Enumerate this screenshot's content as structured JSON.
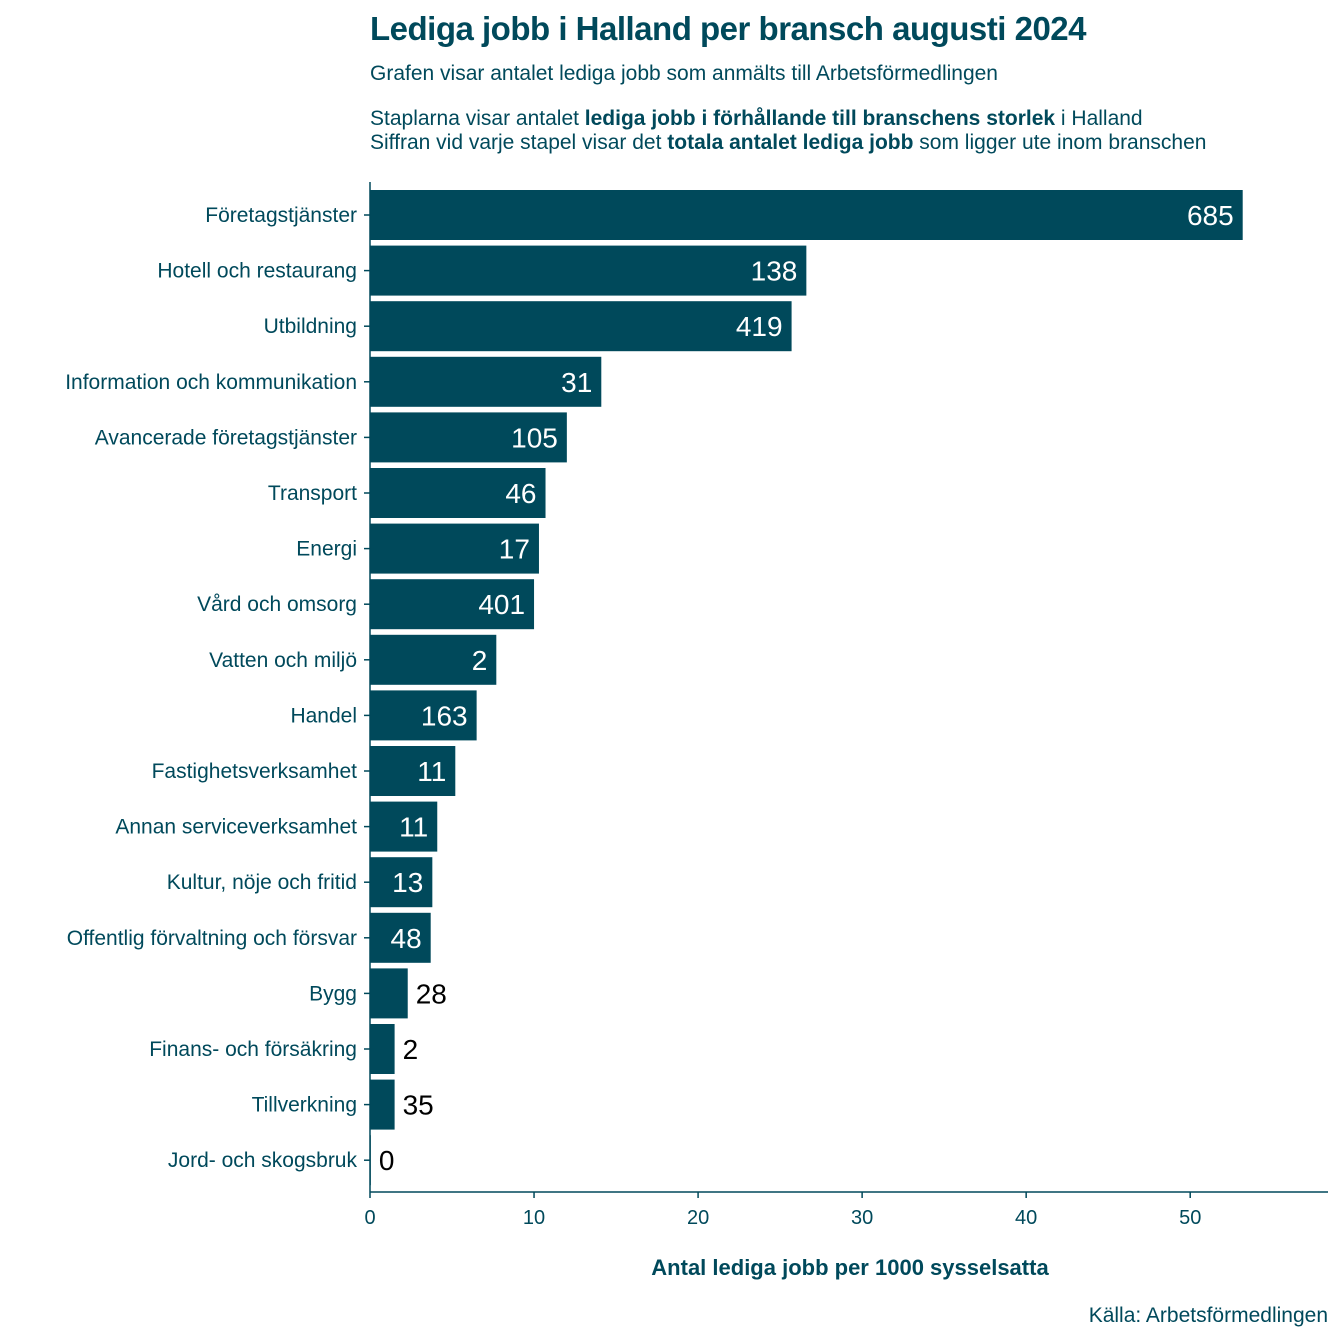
{
  "header": {
    "title": "Lediga jobb i Halland per bransch augusti 2024",
    "subtitle": "Grafen visar antalet lediga jobb som anmälts till Arbetsförmedlingen",
    "desc1": {
      "pre": "Staplarna visar antalet ",
      "bold": "lediga jobb i förhållande till branschens storlek",
      "post": " i Halland"
    },
    "desc2": {
      "pre": "Siffran vid varje stapel visar det ",
      "bold": "totala antalet lediga jobb",
      "post": " som ligger ute inom branschen"
    }
  },
  "source": "Källa: Arbetsförmedlingen",
  "colors": {
    "bar": "#00495b",
    "text": "#00495b",
    "label_inside": "#ffffff",
    "label_outside": "#000000"
  },
  "chart_data": {
    "type": "bar",
    "orientation": "horizontal",
    "categories": [
      "Företagstjänster",
      "Hotell och restaurang",
      "Utbildning",
      "Information och kommunikation",
      "Avancerade företagstjänster",
      "Transport",
      "Energi",
      "Vård och omsorg",
      "Vatten och miljö",
      "Handel",
      "Fastighetsverksamhet",
      "Annan serviceverksamhet",
      "Kultur, nöje och fritid",
      "Offentlig förvaltning och försvar",
      "Bygg",
      "Finans- och försäkring",
      "Tillverkning",
      "Jord- och skogsbruk"
    ],
    "values": [
      53.2,
      26.6,
      25.7,
      14.1,
      12.0,
      10.7,
      10.3,
      10.0,
      7.7,
      6.5,
      5.2,
      4.1,
      3.8,
      3.7,
      2.3,
      1.5,
      1.5,
      0.05
    ],
    "labels": [
      "685",
      "138",
      "419",
      "31",
      "105",
      "46",
      "17",
      "401",
      "2",
      "163",
      "11",
      "11",
      "13",
      "48",
      "28",
      "2",
      "35",
      "0"
    ],
    "xlabel": "Antal lediga jobb per 1000 sysselsatta",
    "ylabel": "",
    "xlim": [
      0,
      58.4
    ],
    "xticks": [
      0,
      10,
      20,
      30,
      40,
      50
    ],
    "grid": false,
    "legend": "none"
  }
}
